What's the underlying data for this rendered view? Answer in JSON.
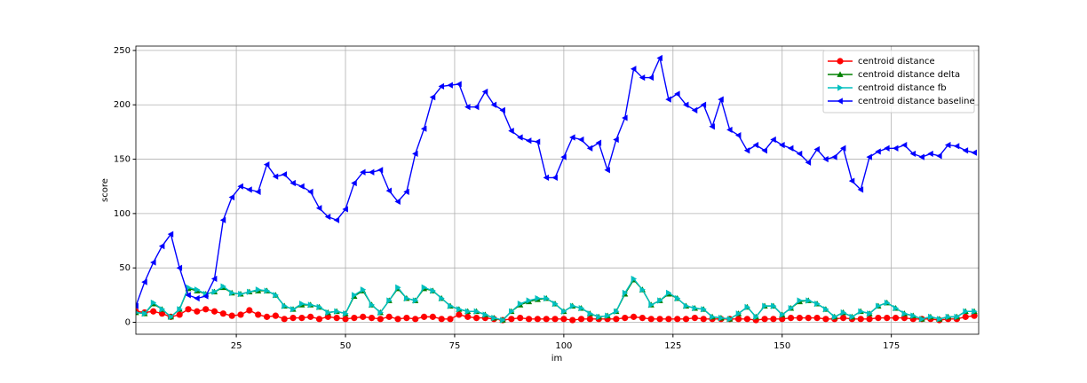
{
  "chart_data": {
    "type": "line",
    "x_label": "im",
    "y_label": "score",
    "xlim": [
      2,
      195
    ],
    "ylim": [
      -11,
      254
    ],
    "xticks": [
      25,
      50,
      75,
      100,
      125,
      150,
      175
    ],
    "yticks": [
      0,
      50,
      100,
      150,
      200,
      250
    ],
    "grid": true,
    "legend": "upper right",
    "x": [
      2,
      4,
      6,
      8,
      10,
      12,
      14,
      16,
      18,
      20,
      22,
      24,
      26,
      28,
      30,
      32,
      34,
      36,
      38,
      40,
      42,
      44,
      46,
      48,
      50,
      52,
      54,
      56,
      58,
      60,
      62,
      64,
      66,
      68,
      70,
      72,
      74,
      76,
      78,
      80,
      82,
      84,
      86,
      88,
      90,
      92,
      94,
      96,
      98,
      100,
      102,
      104,
      106,
      108,
      110,
      112,
      114,
      116,
      118,
      120,
      122,
      124,
      126,
      128,
      130,
      132,
      134,
      136,
      138,
      140,
      142,
      144,
      146,
      148,
      150,
      152,
      154,
      156,
      158,
      160,
      162,
      164,
      166,
      168,
      170,
      172,
      174,
      176,
      178,
      180,
      182,
      184,
      186,
      188,
      190,
      192,
      194
    ],
    "series": [
      {
        "name": "centroid distance",
        "color": "#ff0000",
        "marker": "circle",
        "values": [
          10,
          9,
          10,
          8,
          5,
          7,
          12,
          10,
          12,
          10,
          8,
          6,
          7,
          11,
          7,
          5,
          6,
          3,
          4,
          4,
          5,
          3,
          5,
          4,
          3,
          4,
          5,
          4,
          3,
          5,
          3,
          4,
          3,
          5,
          5,
          3,
          3,
          7,
          5,
          4,
          4,
          3,
          2,
          3,
          4,
          3,
          3,
          3,
          3,
          3,
          2,
          3,
          3,
          3,
          3,
          3,
          4,
          5,
          4,
          3,
          3,
          3,
          3,
          3,
          4,
          3,
          3,
          3,
          3,
          3,
          3,
          2,
          3,
          3,
          3,
          4,
          4,
          4,
          4,
          3,
          3,
          4,
          3,
          3,
          3,
          4,
          4,
          4,
          4,
          3,
          3,
          3,
          2,
          3,
          3,
          5,
          6
        ]
      },
      {
        "name": "centroid distance delta",
        "color": "#008000",
        "marker": "triangle-up",
        "values": [
          9,
          8,
          17,
          12,
          5,
          12,
          31,
          29,
          26,
          28,
          32,
          27,
          26,
          28,
          29,
          29,
          25,
          15,
          12,
          16,
          16,
          14,
          9,
          10,
          8,
          24,
          29,
          16,
          9,
          20,
          31,
          22,
          20,
          31,
          29,
          22,
          15,
          12,
          10,
          10,
          7,
          4,
          2,
          10,
          16,
          19,
          21,
          22,
          17,
          10,
          15,
          13,
          8,
          5,
          6,
          10,
          26,
          39,
          30,
          16,
          20,
          26,
          22,
          15,
          13,
          12,
          5,
          4,
          3,
          8,
          14,
          5,
          15,
          15,
          7,
          13,
          19,
          20,
          17,
          12,
          5,
          9,
          5,
          10,
          8,
          15,
          18,
          13,
          8,
          6,
          3,
          5,
          3,
          5,
          5,
          10,
          10
        ]
      },
      {
        "name": "centroid distance fb",
        "color": "#00bfbf",
        "marker": "triangle-right",
        "values": [
          9,
          8,
          18,
          12,
          5,
          12,
          32,
          30,
          26,
          28,
          33,
          27,
          26,
          28,
          30,
          29,
          25,
          15,
          12,
          17,
          16,
          14,
          9,
          10,
          8,
          25,
          30,
          16,
          9,
          20,
          32,
          22,
          20,
          32,
          29,
          22,
          15,
          12,
          10,
          10,
          7,
          4,
          2,
          10,
          17,
          20,
          22,
          22,
          17,
          10,
          15,
          13,
          8,
          5,
          6,
          10,
          27,
          40,
          30,
          16,
          20,
          27,
          22,
          15,
          13,
          12,
          5,
          4,
          3,
          8,
          14,
          5,
          15,
          15,
          7,
          13,
          20,
          20,
          17,
          12,
          5,
          9,
          5,
          10,
          8,
          15,
          18,
          13,
          8,
          6,
          3,
          5,
          3,
          5,
          5,
          10,
          10
        ]
      },
      {
        "name": "centroid distance baseline",
        "color": "#0000ff",
        "marker": "triangle-left",
        "values": [
          15,
          37,
          55,
          70,
          81,
          50,
          25,
          22,
          24,
          40,
          94,
          115,
          125,
          122,
          120,
          145,
          134,
          136,
          128,
          125,
          120,
          105,
          97,
          94,
          104,
          128,
          138,
          138,
          140,
          121,
          111,
          120,
          155,
          178,
          207,
          217,
          218,
          219,
          198,
          198,
          212,
          200,
          195,
          176,
          170,
          167,
          166,
          133,
          133,
          152,
          170,
          168,
          160,
          165,
          140,
          168,
          188,
          233,
          225,
          225,
          243,
          205,
          210,
          200,
          195,
          200,
          180,
          205,
          177,
          172,
          158,
          163,
          158,
          168,
          163,
          160,
          155,
          147,
          159,
          150,
          152,
          160,
          130,
          122,
          152,
          157,
          160,
          160,
          163,
          155,
          152,
          155,
          153,
          163,
          162,
          158,
          156
        ]
      }
    ]
  }
}
